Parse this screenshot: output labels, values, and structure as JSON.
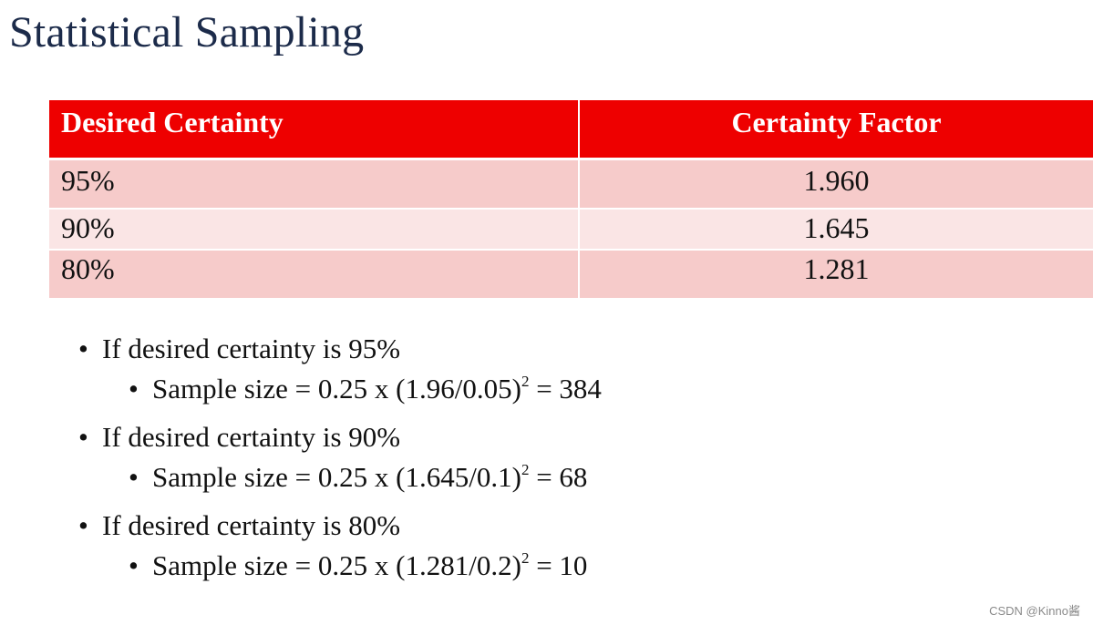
{
  "title": "Statistical Sampling",
  "table": {
    "headers": [
      "Desired Certainty",
      "Certainty Factor"
    ],
    "rows": [
      [
        "95%",
        "1.960"
      ],
      [
        "90%",
        "1.645"
      ],
      [
        "80%",
        "1.281"
      ]
    ]
  },
  "bullets": [
    {
      "text": "If desired certainty is 95%",
      "sub_prefix": "Sample size = 0.25 x (1.96/0.05)",
      "sub_exp": "2",
      "sub_suffix": " = 384"
    },
    {
      "text": "If desired certainty is 90%",
      "sub_prefix": "Sample size = 0.25 x (1.645/0.1)",
      "sub_exp": "2",
      "sub_suffix": " = 68"
    },
    {
      "text": "If desired certainty is 80%",
      "sub_prefix": "Sample size = 0.25 x (1.281/0.2)",
      "sub_exp": "2",
      "sub_suffix": " = 10"
    }
  ],
  "bullet_glyph": "•",
  "watermark": "CSDN @Kinno酱",
  "colors": {
    "header_bg": "#ee0000",
    "row_dark": "#f6cbca",
    "row_light": "#fae5e5",
    "title": "#1c2b4a"
  }
}
